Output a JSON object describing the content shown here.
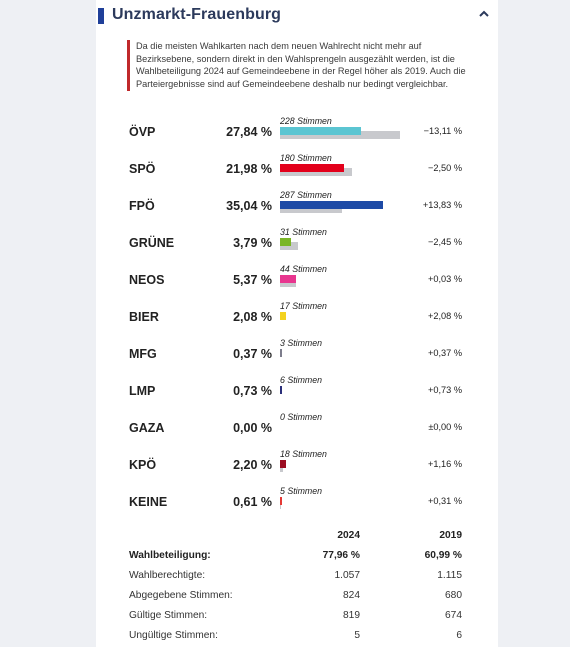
{
  "header": {
    "title": "Unzmarkt-Frauenburg",
    "accent_color": "#1f3f99",
    "collapse_icon": "chevron-up-icon"
  },
  "note": "Da die meisten Wahlkarten nach dem neuen Wahlrecht nicht mehr auf Bezirksebene, sondern direkt in den Wahlsprengeln ausgezählt werden, ist die Wahlbeteiligung 2024 auf Gemeindeebene in der Regel höher als 2019. Auch die Parteiergebnisse sind auf Gemeindeebene deshalb nur bedingt vergleichbar.",
  "chart_data": {
    "type": "bar",
    "categories": [
      "ÖVP",
      "SPÖ",
      "FPÖ",
      "GRÜNE",
      "NEOS",
      "BIER",
      "MFG",
      "LMP",
      "GAZA",
      "KPÖ",
      "KEINE"
    ],
    "series": [
      {
        "name": "2024",
        "values": [
          27.84,
          21.98,
          35.04,
          3.79,
          5.37,
          2.08,
          0.37,
          0.73,
          0.0,
          2.2,
          0.61
        ]
      },
      {
        "name": "2019",
        "values": [
          40.95,
          24.48,
          21.21,
          6.24,
          5.34,
          0.0,
          0.0,
          0.0,
          0.0,
          1.04,
          0.3
        ]
      }
    ]
  },
  "parties": [
    {
      "name": "ÖVP",
      "percent": "27,84 %",
      "votes": "228 Stimmen",
      "diff": "−13,11 %",
      "color": "#5bc5d2"
    },
    {
      "name": "SPÖ",
      "percent": "21,98 %",
      "votes": "180 Stimmen",
      "diff": "−2,50 %",
      "color": "#e3001b"
    },
    {
      "name": "FPÖ",
      "percent": "35,04 %",
      "votes": "287 Stimmen",
      "diff": "+13,83 %",
      "color": "#1d4aa6"
    },
    {
      "name": "GRÜNE",
      "percent": "3,79 %",
      "votes": "31 Stimmen",
      "diff": "−2,45 %",
      "color": "#7ab626"
    },
    {
      "name": "NEOS",
      "percent": "5,37 %",
      "votes": "44 Stimmen",
      "diff": "+0,03 %",
      "color": "#e8368f"
    },
    {
      "name": "BIER",
      "percent": "2,08 %",
      "votes": "17 Stimmen",
      "diff": "+2,08 %",
      "color": "#f3d21f"
    },
    {
      "name": "MFG",
      "percent": "0,37 %",
      "votes": "3 Stimmen",
      "diff": "+0,37 %",
      "color": "#7d7d8c"
    },
    {
      "name": "LMP",
      "percent": "0,73 %",
      "votes": "6 Stimmen",
      "diff": "+0,73 %",
      "color": "#2b2f7a"
    },
    {
      "name": "GAZA",
      "percent": "0,00 %",
      "votes": "0 Stimmen",
      "diff": "±0,00 %",
      "color": "#9a9a9a"
    },
    {
      "name": "KPÖ",
      "percent": "2,20 %",
      "votes": "18 Stimmen",
      "diff": "+1,16 %",
      "color": "#9b0d22"
    },
    {
      "name": "KEINE",
      "percent": "0,61 %",
      "votes": "5 Stimmen",
      "diff": "+0,31 %",
      "color": "#e53935"
    }
  ],
  "stats": {
    "col_2024": "2024",
    "col_2019": "2019",
    "rows": [
      {
        "label": "Wahlbeteiligung:",
        "v2024": "77,96 %",
        "v2019": "60,99 %"
      },
      {
        "label": "Wahlberechtigte:",
        "v2024": "1.057",
        "v2019": "1.115"
      },
      {
        "label": "Abgegebene Stimmen:",
        "v2024": "824",
        "v2019": "680"
      },
      {
        "label": "Gültige Stimmen:",
        "v2024": "819",
        "v2019": "674"
      },
      {
        "label": "Ungültige Stimmen:",
        "v2024": "5",
        "v2019": "6"
      }
    ]
  }
}
